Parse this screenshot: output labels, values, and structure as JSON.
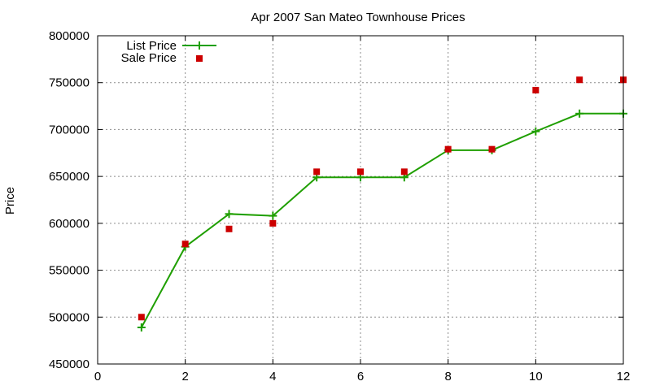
{
  "chart_data": {
    "type": "line",
    "title": "Apr 2007 San Mateo Townhouse Prices",
    "xlabel": "",
    "ylabel": "Price",
    "xlim": [
      0,
      12
    ],
    "ylim": [
      450000,
      800000
    ],
    "xticks": [
      0,
      2,
      4,
      6,
      8,
      10,
      12
    ],
    "yticks": [
      450000,
      500000,
      550000,
      600000,
      650000,
      700000,
      750000,
      800000
    ],
    "grid": true,
    "legend_position": "top-left",
    "series": [
      {
        "name": "List Price",
        "style": "line-with-plus-markers",
        "color": "#1f9f00",
        "x": [
          1,
          2,
          3,
          4,
          5,
          6,
          7,
          8,
          9,
          10,
          11,
          12
        ],
        "y": [
          489000,
          575000,
          610000,
          608000,
          649000,
          649000,
          649000,
          678000,
          678000,
          698000,
          717000,
          717000
        ]
      },
      {
        "name": "Sale Price",
        "style": "square-markers",
        "color": "#cc0000",
        "x": [
          1,
          2,
          3,
          4,
          5,
          6,
          7,
          8,
          9,
          10,
          11,
          12
        ],
        "y": [
          500000,
          578000,
          594000,
          600000,
          655000,
          655000,
          655000,
          679000,
          679000,
          742000,
          753000,
          753000
        ]
      }
    ]
  }
}
